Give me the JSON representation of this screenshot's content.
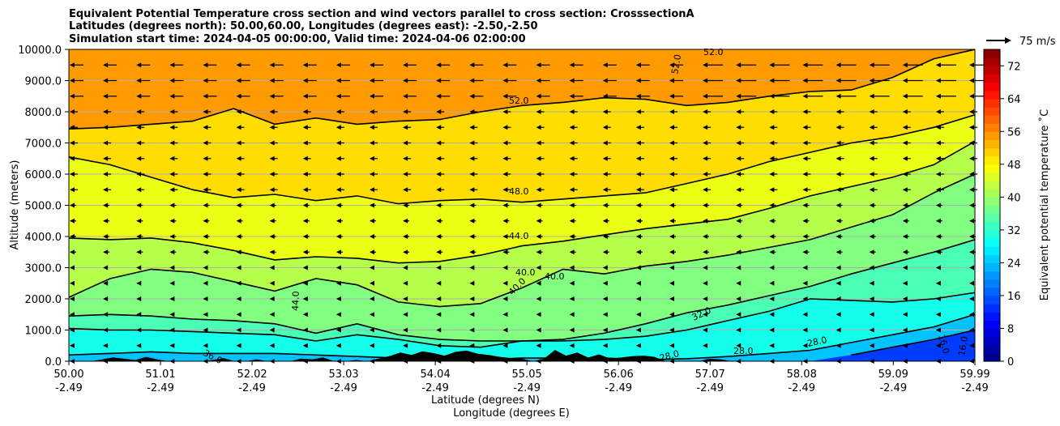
{
  "chart_data": {
    "type": "cross_section_contour",
    "title_lines": [
      "Equivalent Potential Temperature cross section and wind vectors parallel to cross section: CrosssectionA",
      "Latitudes (degrees north): 50.00,60.00, Longitudes (degrees east): -2.50,-2.50",
      "Simulation start time: 2024-04-05 00:00:00, Valid time: 2024-04-06 02:00:00"
    ],
    "ylabel": "Altitude (meters)",
    "xlabel_lines": [
      "Latitude (degrees N)",
      "Longitude (degrees E)"
    ],
    "ylim": [
      0,
      10000
    ],
    "xlim": [
      50.0,
      59.99
    ],
    "y_ticks": [
      "0.0",
      "1000.0",
      "2000.0",
      "3000.0",
      "4000.0",
      "5000.0",
      "6000.0",
      "7000.0",
      "8000.0",
      "9000.0",
      "10000.0"
    ],
    "x_ticks": [
      {
        "lat": "50.00",
        "lon": "-2.49"
      },
      {
        "lat": "51.01",
        "lon": "-2.49"
      },
      {
        "lat": "52.02",
        "lon": "-2.49"
      },
      {
        "lat": "53.03",
        "lon": "-2.49"
      },
      {
        "lat": "54.04",
        "lon": "-2.49"
      },
      {
        "lat": "55.05",
        "lon": "-2.49"
      },
      {
        "lat": "56.06",
        "lon": "-2.49"
      },
      {
        "lat": "57.07",
        "lon": "-2.49"
      },
      {
        "lat": "58.08",
        "lon": "-2.49"
      },
      {
        "lat": "59.09",
        "lon": "-2.49"
      },
      {
        "lat": "59.99",
        "lon": "-2.49"
      }
    ],
    "colorbar": {
      "label": "Equivalent potential temperature ˚C",
      "range": [
        0,
        76
      ],
      "step": 2,
      "tick_values": [
        0,
        8,
        16,
        24,
        32,
        40,
        48,
        56,
        64,
        72
      ],
      "tick_labels": [
        "0",
        "8",
        "16",
        "24",
        "32",
        "40",
        "48",
        "56",
        "64",
        "72"
      ]
    },
    "quiver_key": {
      "label": "75 m/s",
      "speed": 75
    },
    "contours": [
      {
        "value": 52,
        "heights": [
          7450,
          7500,
          7600,
          7700,
          8100,
          7600,
          7800,
          7600,
          7700,
          7750,
          8000,
          8200,
          8300,
          8450,
          8400,
          8200,
          8300,
          8500,
          8650,
          8700,
          9100,
          9700,
          10000
        ]
      },
      {
        "value": 48,
        "heights": [
          6550,
          6300,
          5900,
          5500,
          5250,
          5350,
          5150,
          5300,
          5050,
          5150,
          5200,
          5100,
          5200,
          5300,
          5400,
          5700,
          6000,
          6400,
          6700,
          7000,
          7200,
          7500,
          7900
        ]
      },
      {
        "value": 44,
        "heights": [
          3950,
          3900,
          3950,
          3800,
          3550,
          3250,
          3350,
          3300,
          3150,
          3200,
          3400,
          3700,
          3850,
          4050,
          4250,
          4400,
          4550,
          4900,
          5300,
          5600,
          5900,
          6300,
          7050
        ]
      },
      {
        "value": 40,
        "heights": [
          2050,
          2650,
          2950,
          2850,
          2550,
          2250,
          2650,
          2450,
          1900,
          1750,
          1850,
          2350,
          2950,
          2800,
          3050,
          3200,
          3400,
          3650,
          3900,
          4300,
          4700,
          5400,
          6000
        ]
      },
      {
        "value": 36,
        "heights": [
          1450,
          1500,
          1450,
          1350,
          1300,
          1200,
          900,
          1200,
          850,
          700,
          650,
          650,
          700,
          900,
          1200,
          1550,
          1800,
          2100,
          2400,
          2800,
          3150,
          3500,
          3900
        ]
      },
      {
        "value": 32,
        "heights": [
          1050,
          1000,
          1000,
          950,
          900,
          850,
          650,
          850,
          700,
          500,
          450,
          650,
          650,
          700,
          800,
          1000,
          1300,
          1600,
          2000,
          1950,
          1900,
          2000,
          2200
        ]
      },
      {
        "value": 28,
        "heights": [
          200,
          250,
          300,
          250,
          250,
          250,
          200,
          150,
          100,
          50,
          50,
          100,
          100,
          100,
          50,
          80,
          150,
          250,
          350,
          600,
          850,
          1100,
          1500
        ]
      },
      {
        "value": 16,
        "heights": [
          null,
          null,
          null,
          null,
          null,
          null,
          null,
          null,
          null,
          null,
          null,
          null,
          null,
          null,
          null,
          null,
          null,
          null,
          null,
          200,
          450,
          700,
          1000
        ]
      }
    ],
    "contour_labels": [
      "52.0",
      "52.0",
      "52.0",
      "48.0",
      "44.0",
      "44.0",
      "40.0",
      "40.0",
      "40.0",
      "36.0",
      "32.0",
      "28.0",
      "28.0",
      "28.0",
      "16.0",
      "16.0"
    ],
    "wind": "mostly easterly (toward negative x) aloft, weak near surface"
  }
}
